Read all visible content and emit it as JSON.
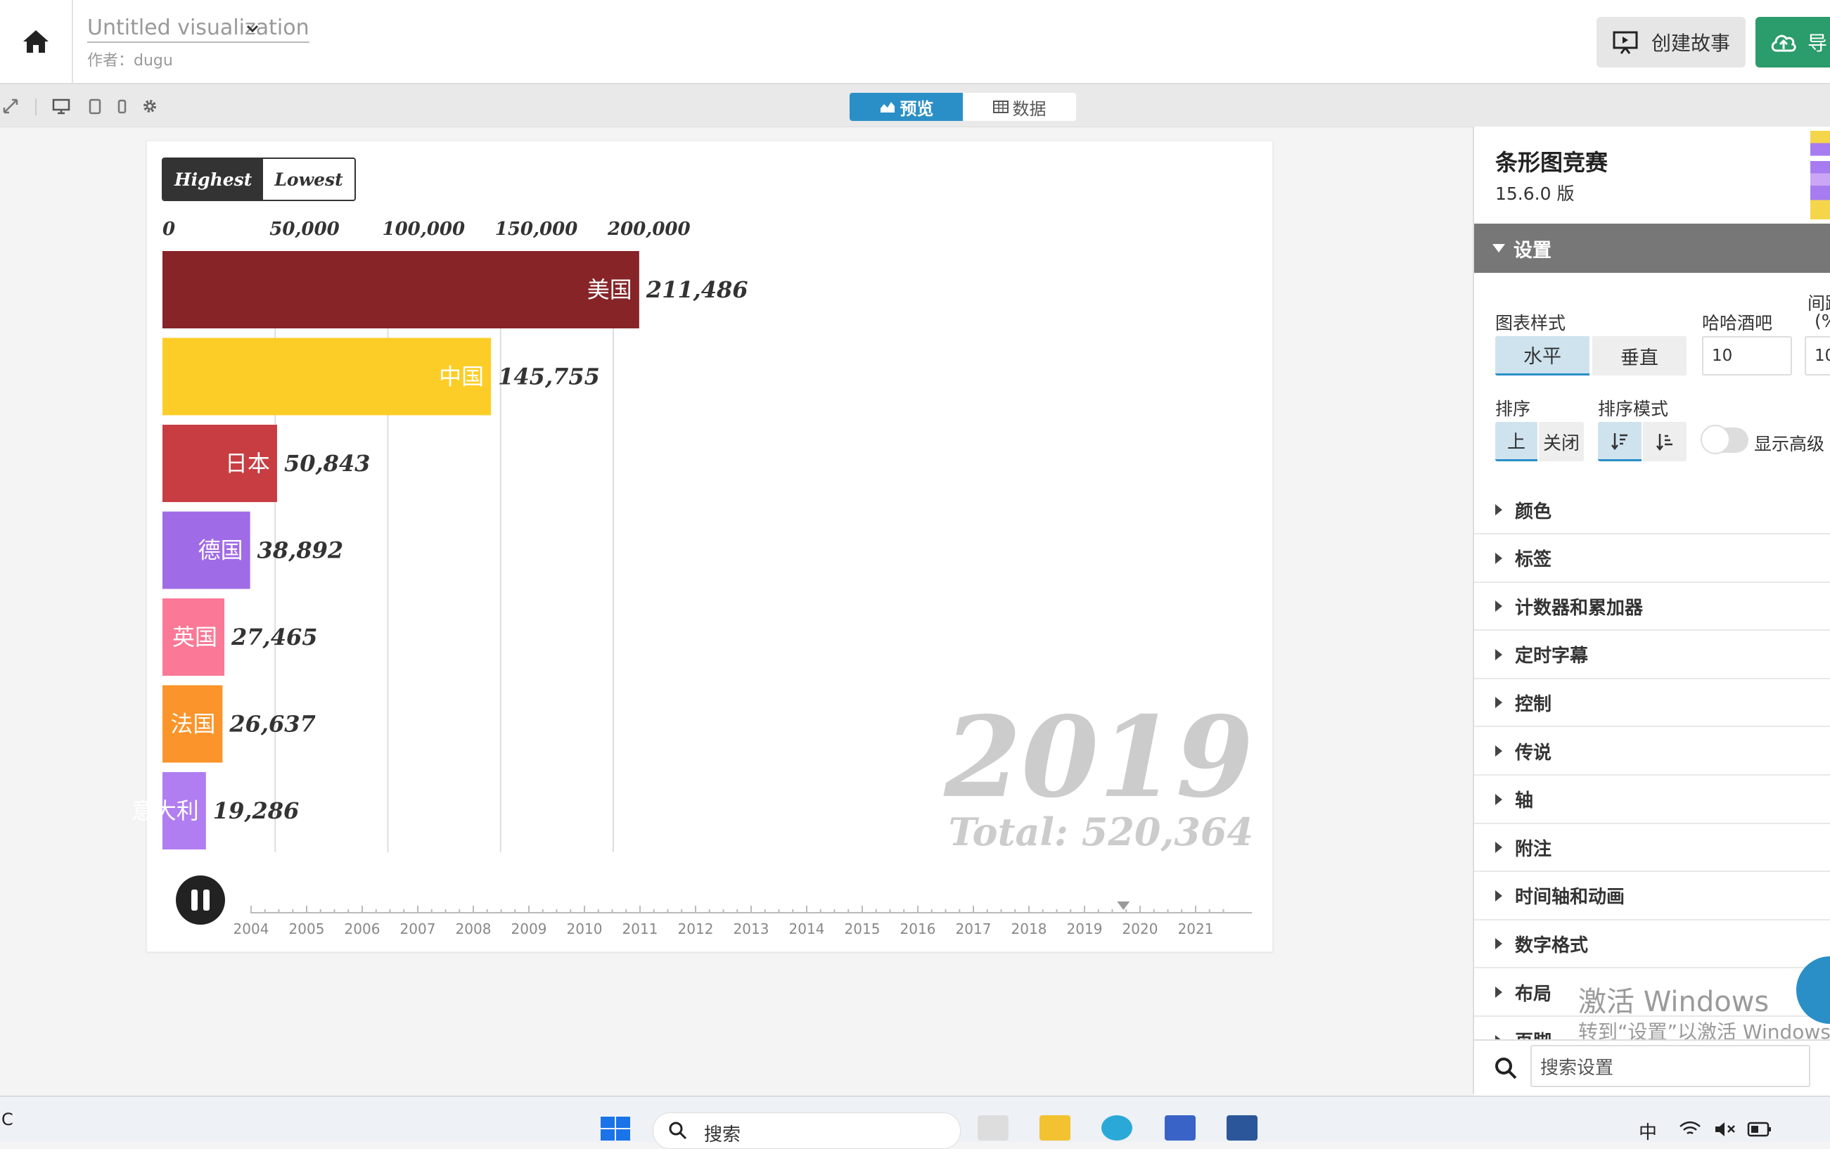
{
  "header": {
    "title": "Untitled visualization",
    "author": "作者：dugu",
    "story_button": "创建故事",
    "export_button": "导"
  },
  "view_tabs": {
    "preview": "预览",
    "data": "数据"
  },
  "chart_controls": {
    "highest": "Highest",
    "lowest": "Lowest"
  },
  "chart_data": {
    "type": "bar",
    "orientation": "horizontal",
    "categories": [
      "美国",
      "中国",
      "日本",
      "德国",
      "英国",
      "法国",
      "意大利"
    ],
    "values": [
      211486,
      145755,
      50843,
      38892,
      27465,
      26637,
      19286
    ],
    "value_labels": [
      "211,486",
      "145,755",
      "50,843",
      "38,892",
      "27,465",
      "26,637",
      "19,286"
    ],
    "colors": [
      "#862427",
      "#fdcd27",
      "#c83d42",
      "#a06be6",
      "#fb7896",
      "#fb942a",
      "#b07ef0"
    ],
    "xlim": [
      0,
      240000
    ],
    "xticks": [
      0,
      50000,
      100000,
      150000,
      200000
    ],
    "xtick_labels": [
      "0",
      "50,000",
      "100,000",
      "150,000",
      "200,000"
    ],
    "year": "2019",
    "total": "Total: 520,364",
    "grid": true
  },
  "timeline": {
    "years": [
      "2004",
      "2005",
      "2006",
      "2007",
      "2008",
      "2009",
      "2010",
      "2011",
      "2012",
      "2013",
      "2014",
      "2015",
      "2016",
      "2017",
      "2018",
      "2019",
      "2020",
      "2021"
    ],
    "current_position": 2019.7,
    "playing": true
  },
  "panel": {
    "plugin_name": "条形图竞赛",
    "version": "15.6.0 版",
    "settings_label": "设置",
    "chart_style_label": "图表样式",
    "style_horizontal": "水平",
    "style_vertical": "垂直",
    "bars_label": "哈哈酒吧",
    "bars_value": "10",
    "gap_label": "间距",
    "gap_sub": "(%",
    "gap_value": "10",
    "sort_label": "排序",
    "sort_on": "上",
    "sort_off": "关闭",
    "sort_mode_label": "排序模式",
    "advanced_label": "显示高级",
    "sections": [
      "颜色",
      "标签",
      "计数器和累加器",
      "定时字幕",
      "控制",
      "传说",
      "轴",
      "附注",
      "时间轴和动画",
      "数字格式",
      "布局",
      "页脚"
    ],
    "search_placeholder": "搜索设置"
  },
  "watermark": {
    "line1": "激活 Windows",
    "line2": "转到“设置”以激活 Windows。"
  },
  "taskbar": {
    "left_text": "C",
    "search_placeholder": "搜索",
    "ime": "中"
  }
}
